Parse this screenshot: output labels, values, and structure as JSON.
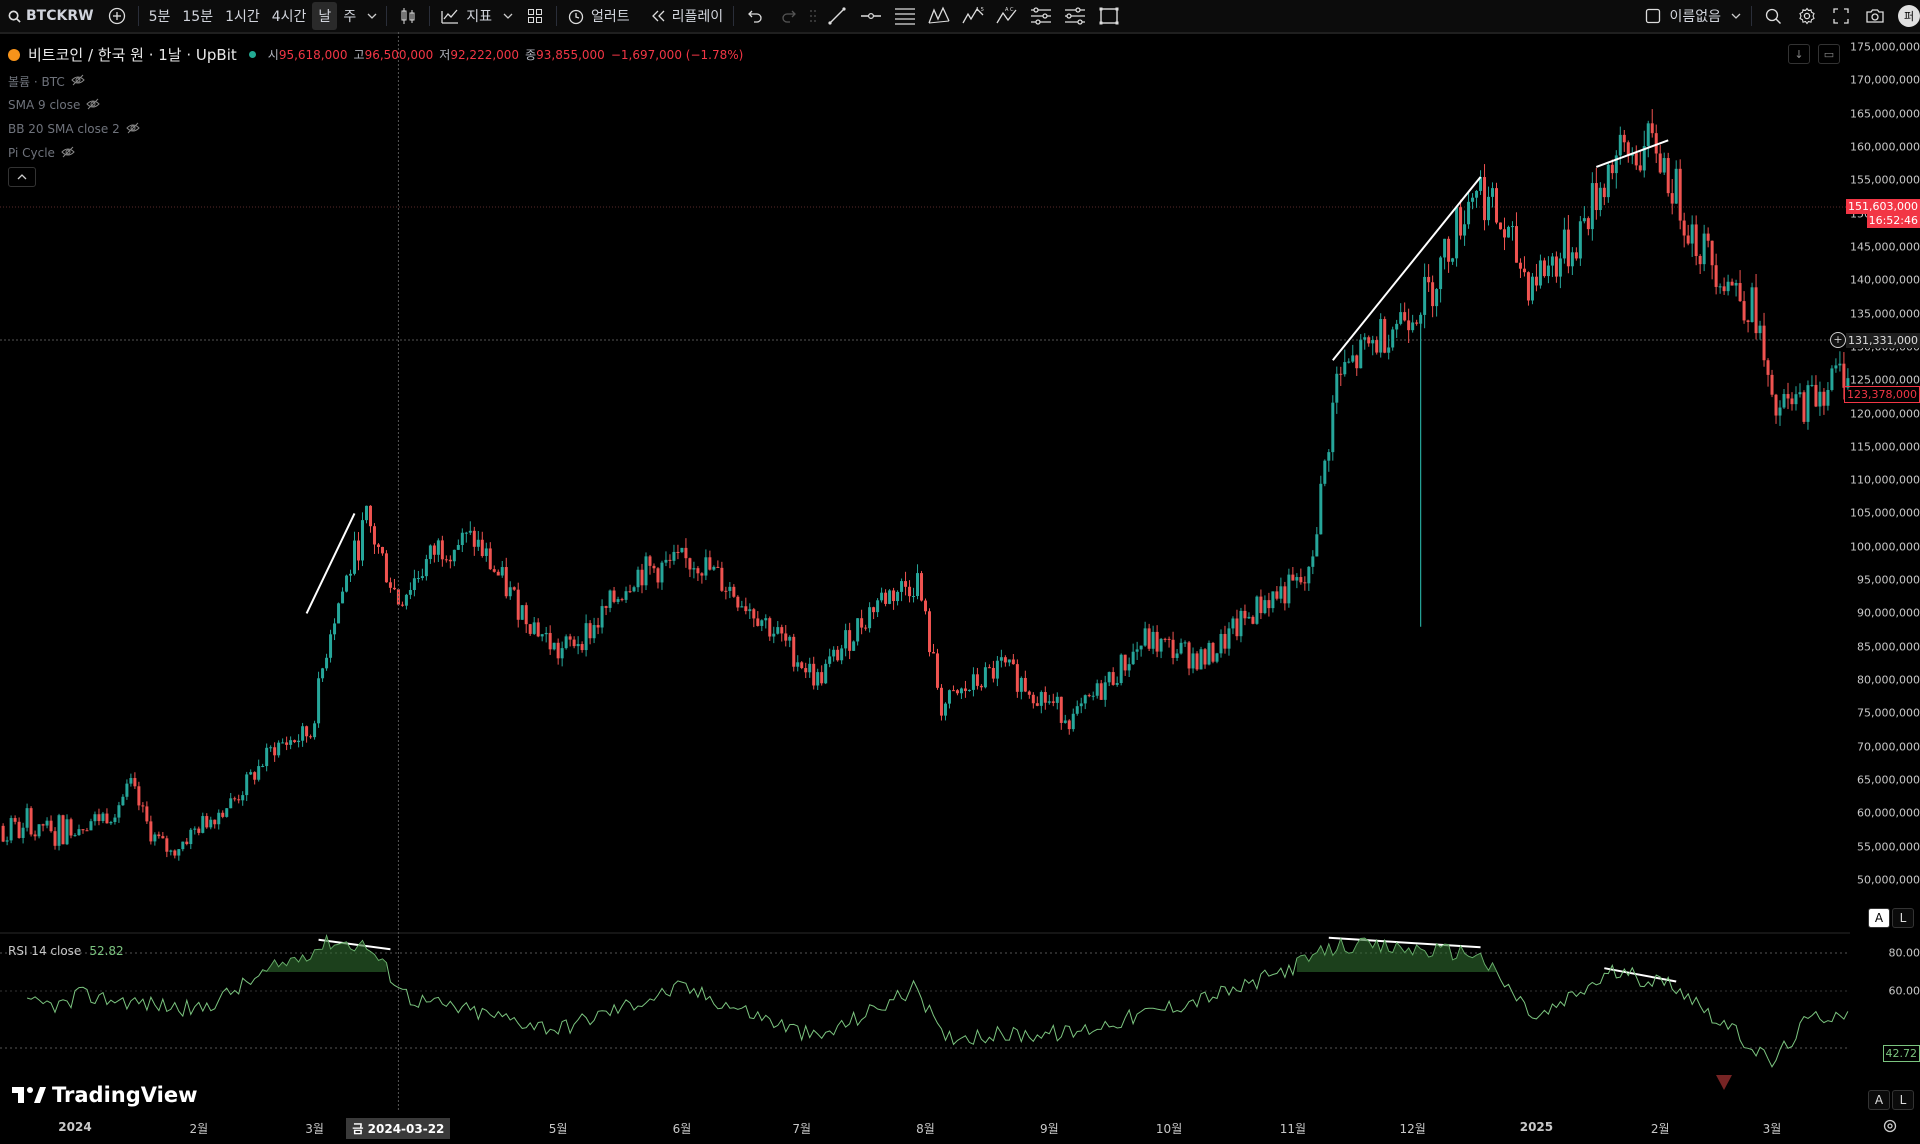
{
  "toolbar": {
    "symbol": "BTCKRW",
    "intervals": [
      "5분",
      "15분",
      "1시간",
      "4시간",
      "날",
      "주"
    ],
    "active_interval": "날",
    "indicators_label": "지표",
    "alert_label": "얼러트",
    "replay_label": "리플레이",
    "layout_name": "이름없음",
    "avatar_text": "퍼"
  },
  "legend": {
    "title": "비트코인 / 한국 원 · 1날 · UpBit",
    "open_label": "시",
    "open": "95,618,000",
    "high_label": "고",
    "high": "96,500,000",
    "low_label": "저",
    "low": "92,222,000",
    "close_label": "종",
    "close": "93,855,000",
    "change": "−1,697,000 (−1.78%)",
    "indicators": [
      "볼륨 · BTC",
      "SMA 9 close",
      "BB 20 SMA close 2",
      "Pi Cycle"
    ],
    "collapse_icon": "chevron-up-icon"
  },
  "price_axis": {
    "labels": [
      "175,000,000",
      "170,000,000",
      "165,000,000",
      "160,000,000",
      "155,000,000",
      "150,000,000",
      "145,000,000",
      "140,000,000",
      "135,000,000",
      "130,000,000",
      "125,000,000",
      "120,000,000",
      "115,000,000",
      "110,000,000",
      "105,000,000",
      "100,000,000",
      "95,000,000",
      "90,000,000",
      "85,000,000",
      "80,000,000",
      "75,000,000",
      "70,000,000",
      "65,000,000",
      "60,000,000",
      "55,000,000",
      "50,000,000"
    ],
    "current_price": "151,603,000",
    "countdown": "16:52:46",
    "crosshair_price": "131,331,000",
    "last_price": "123,378,000"
  },
  "time_axis": {
    "labels": [
      "2024",
      "2월",
      "3월",
      "5월",
      "6월",
      "7월",
      "8월",
      "9월",
      "10월",
      "11월",
      "12월",
      "2025",
      "2월",
      "3월"
    ],
    "crosshair_date": "금 2024-03-22"
  },
  "rsi": {
    "name": "RSI 14 close",
    "value": "52.82",
    "axis_labels": [
      "80.00",
      "60.00"
    ],
    "current": "42.72"
  },
  "scale_buttons": {
    "auto": "A",
    "log": "L"
  },
  "branding": {
    "logo_text": "TradingView"
  },
  "colors": {
    "up": "#26a69a",
    "down": "#ef5350",
    "rsi_line": "#7bc47f",
    "badge_red": "#f23645"
  },
  "chart_data": {
    "type": "candlestick",
    "symbol": "BTCKRW",
    "interval": "1D",
    "ylim": [
      50000000,
      175000000
    ],
    "close_path": [
      {
        "x": "2024-01-01",
        "y": 58000000
      },
      {
        "x": "2024-01-10",
        "y": 60000000
      },
      {
        "x": "2024-01-15",
        "y": 64000000
      },
      {
        "x": "2024-01-20",
        "y": 57000000
      },
      {
        "x": "2024-01-25",
        "y": 54000000
      },
      {
        "x": "2024-02-01",
        "y": 58000000
      },
      {
        "x": "2024-02-10",
        "y": 62000000
      },
      {
        "x": "2024-02-20",
        "y": 70000000
      },
      {
        "x": "2024-02-29",
        "y": 72000000
      },
      {
        "x": "2024-03-05",
        "y": 88000000
      },
      {
        "x": "2024-03-14",
        "y": 104000000
      },
      {
        "x": "2024-03-22",
        "y": 92000000
      },
      {
        "x": "2024-04-01",
        "y": 100000000
      },
      {
        "x": "2024-04-10",
        "y": 101000000
      },
      {
        "x": "2024-04-20",
        "y": 92000000
      },
      {
        "x": "2024-05-01",
        "y": 84000000
      },
      {
        "x": "2024-05-10",
        "y": 88000000
      },
      {
        "x": "2024-05-20",
        "y": 96000000
      },
      {
        "x": "2024-06-05",
        "y": 98000000
      },
      {
        "x": "2024-06-20",
        "y": 90000000
      },
      {
        "x": "2024-07-05",
        "y": 80000000
      },
      {
        "x": "2024-07-20",
        "y": 92000000
      },
      {
        "x": "2024-07-30",
        "y": 95000000
      },
      {
        "x": "2024-08-05",
        "y": 76000000
      },
      {
        "x": "2024-08-20",
        "y": 82000000
      },
      {
        "x": "2024-09-07",
        "y": 74000000
      },
      {
        "x": "2024-09-25",
        "y": 86000000
      },
      {
        "x": "2024-10-10",
        "y": 83000000
      },
      {
        "x": "2024-10-25",
        "y": 92000000
      },
      {
        "x": "2024-11-05",
        "y": 95000000
      },
      {
        "x": "2024-11-12",
        "y": 125000000
      },
      {
        "x": "2024-11-25",
        "y": 133000000
      },
      {
        "x": "2024-12-05",
        "y": 138000000
      },
      {
        "x": "2024-12-17",
        "y": 155000000
      },
      {
        "x": "2024-12-30",
        "y": 140000000
      },
      {
        "x": "2025-01-10",
        "y": 145000000
      },
      {
        "x": "2025-01-20",
        "y": 158000000
      },
      {
        "x": "2025-01-31",
        "y": 160000000
      },
      {
        "x": "2025-02-10",
        "y": 146000000
      },
      {
        "x": "2025-02-25",
        "y": 135000000
      },
      {
        "x": "2025-03-01",
        "y": 120000000
      },
      {
        "x": "2025-03-10",
        "y": 122000000
      },
      {
        "x": "2025-03-20",
        "y": 127000000
      },
      {
        "x": "2025-03-27",
        "y": 123378000
      }
    ],
    "rsi_series": [
      {
        "x": "2024-01-01",
        "y": 58
      },
      {
        "x": "2024-02-01",
        "y": 50
      },
      {
        "x": "2024-02-20",
        "y": 72
      },
      {
        "x": "2024-03-05",
        "y": 86
      },
      {
        "x": "2024-03-14",
        "y": 84
      },
      {
        "x": "2024-03-25",
        "y": 56
      },
      {
        "x": "2024-05-01",
        "y": 40
      },
      {
        "x": "2024-06-01",
        "y": 62
      },
      {
        "x": "2024-07-05",
        "y": 35
      },
      {
        "x": "2024-07-30",
        "y": 62
      },
      {
        "x": "2024-08-05",
        "y": 36
      },
      {
        "x": "2024-09-07",
        "y": 38
      },
      {
        "x": "2024-10-20",
        "y": 62
      },
      {
        "x": "2024-11-13",
        "y": 84
      },
      {
        "x": "2024-12-17",
        "y": 80
      },
      {
        "x": "2025-01-01",
        "y": 45
      },
      {
        "x": "2025-01-20",
        "y": 70
      },
      {
        "x": "2025-02-05",
        "y": 63
      },
      {
        "x": "2025-03-01",
        "y": 22
      },
      {
        "x": "2025-03-10",
        "y": 45
      },
      {
        "x": "2025-03-27",
        "y": 52.82
      }
    ]
  }
}
